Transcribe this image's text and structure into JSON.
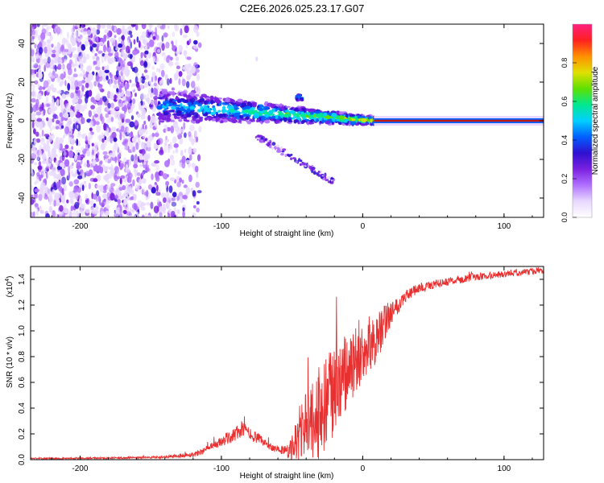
{
  "title": "C2E6.2026.025.23.17.G07",
  "colors": {
    "snr_line": "#e83030",
    "axis": "#000000",
    "colorbar": [
      "#ffffff",
      "#e8d8ff",
      "#b070ff",
      "#7a20e0",
      "#3010d0",
      "#0060ff",
      "#00d0ff",
      "#00e890",
      "#60e000",
      "#e0e000",
      "#ff9000",
      "#ff2020",
      "#ff2080"
    ]
  },
  "chart_data": [
    {
      "type": "heatmap",
      "title": "C2E6.2026.025.23.17.G07",
      "xlabel": "Height of straight line (km)",
      "ylabel": "Frequency (Hz)",
      "xlim": [
        -235,
        128
      ],
      "ylim": [
        -50,
        50
      ],
      "xticks": [
        -200,
        -100,
        0,
        100
      ],
      "yticks": [
        -40,
        -20,
        0,
        20,
        40
      ],
      "colorbar": {
        "label": "Normalized spectral amplitude",
        "range": [
          0,
          1
        ],
        "ticks": [
          "0.0",
          "0.2",
          "0.4",
          "0.6",
          "0.8"
        ]
      },
      "features": {
        "noise_region_x": [
          -235,
          -120
        ],
        "ridge_center_hz": 0,
        "ridge_start_km": -145,
        "ridge_tilt_hz": [
          8,
          0
        ],
        "steady_tone_from_km": 8,
        "side_branch": {
          "x": [
            -75,
            -20
          ],
          "y": [
            -8,
            -32
          ]
        },
        "upper_blob": {
          "x": -45,
          "y": 12
        },
        "outlier": {
          "x": -75,
          "y": 32
        }
      }
    },
    {
      "type": "line",
      "xlabel": "Height of straight line (km)",
      "ylabel": "SNR (10 * v/v)",
      "yscale_label": "(x10",
      "yscale_exp": "4",
      "xlim": [
        -235,
        128
      ],
      "ylim": [
        0,
        1.5
      ],
      "xticks": [
        -200,
        -100,
        0,
        100
      ],
      "yticks": [
        "0.0",
        "0.2",
        "0.4",
        "0.6",
        "0.8",
        "1.0",
        "1.2",
        "1.4"
      ],
      "series": [
        {
          "name": "SNR",
          "x": [
            -235,
            -200,
            -160,
            -140,
            -120,
            -110,
            -100,
            -90,
            -85,
            -80,
            -72,
            -65,
            -60,
            -55,
            -50,
            -45,
            -40,
            -35,
            -30,
            -25,
            -20,
            -15,
            -10,
            -5,
            0,
            5,
            10,
            15,
            20,
            25,
            30,
            40,
            50,
            60,
            70,
            80,
            90,
            100,
            110,
            120,
            128
          ],
          "values": [
            0.01,
            0.01,
            0.015,
            0.02,
            0.04,
            0.08,
            0.14,
            0.2,
            0.24,
            0.2,
            0.15,
            0.1,
            0.08,
            0.07,
            0.08,
            0.2,
            0.28,
            0.3,
            0.34,
            0.42,
            0.52,
            0.6,
            0.7,
            0.76,
            0.8,
            0.86,
            0.94,
            1.05,
            1.15,
            1.2,
            1.27,
            1.33,
            1.36,
            1.38,
            1.4,
            1.42,
            1.43,
            1.44,
            1.45,
            1.46,
            1.47
          ],
          "noise": [
            0.005,
            0.006,
            0.008,
            0.01,
            0.02,
            0.03,
            0.04,
            0.06,
            0.06,
            0.05,
            0.04,
            0.03,
            0.03,
            0.04,
            0.1,
            0.22,
            0.28,
            0.3,
            0.34,
            0.4,
            0.4,
            0.34,
            0.3,
            0.26,
            0.22,
            0.2,
            0.18,
            0.16,
            0.1,
            0.07,
            0.05,
            0.04,
            0.035,
            0.03,
            0.03,
            0.03,
            0.03,
            0.025,
            0.025,
            0.025,
            0.025
          ]
        }
      ]
    }
  ]
}
